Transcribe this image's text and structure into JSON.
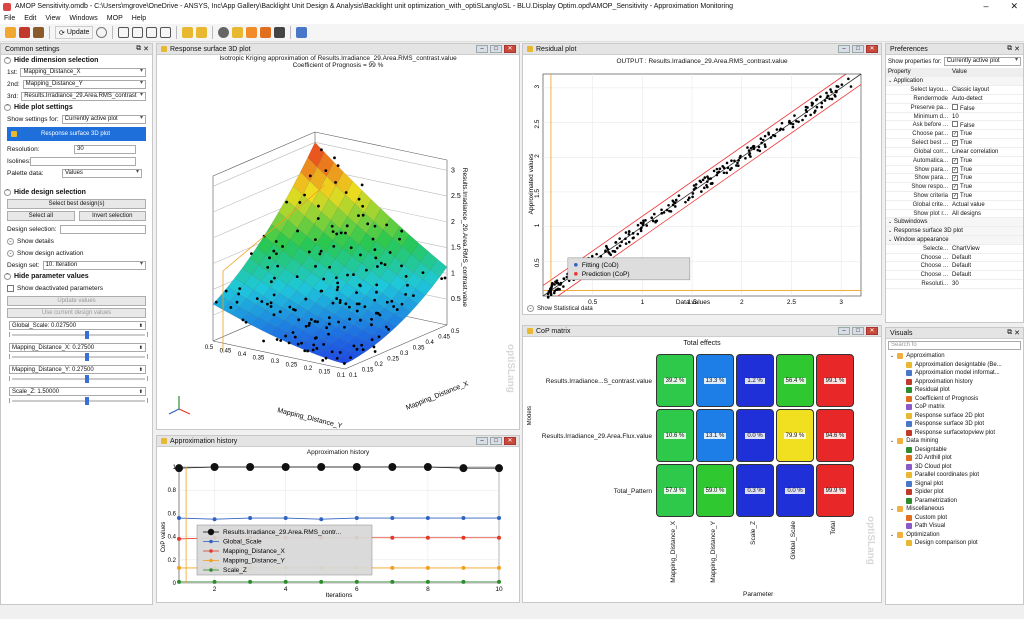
{
  "window": {
    "title": "AMOP Sensitivity.omdb - C:\\Users\\mgrove\\OneDrive - ANSYS, Inc\\App Gallery\\Backlight Unit Design & Analysis\\Backlight unit optimization_with_optiSLang\\oSL - BLU.Display Optim.opd\\AMOP_Sensitivity - Approximation Monitoring",
    "minimize": "–",
    "close": "✕"
  },
  "menu": [
    "File",
    "Edit",
    "View",
    "Windows",
    "MOP",
    "Help"
  ],
  "toolbar": {
    "update_label": "Update"
  },
  "common": {
    "title": "Common settings",
    "hide_dimension": "Hide dimension selection",
    "dims": [
      {
        "label": "1st:",
        "value": "Mapping_Distance_X"
      },
      {
        "label": "2nd:",
        "value": "Mapping_Distance_Y"
      },
      {
        "label": "3rd:",
        "value": "Results.Irradiance_29.Area.RMS_contrast"
      }
    ],
    "hide_plot": "Hide plot settings",
    "show_for_label": "Show settings for:",
    "show_for_value": "Currently active plot",
    "plot_button": "Response surface 3D plot",
    "resolution_label": "Resolution:",
    "resolution_value": "30",
    "isolines_label": "Isolines:",
    "isolines_value": "",
    "palette_label": "Palette data:",
    "palette_value": "Values",
    "hide_design": "Hide design selection",
    "select_best": "Select best design(s)",
    "select_all": "Select all",
    "invert": "Invert selection",
    "design_sel_label": "Design selection:",
    "design_sel_value": "",
    "show_details": "Show details",
    "show_activation": "Show design activation",
    "design_set_label": "Design set:",
    "design_set_value": "10. Iteration",
    "hide_param": "Hide parameter values",
    "show_deactivated": "Show deactivated parameters",
    "update_values": "Update values",
    "use_current": "Use current design values",
    "params": [
      {
        "value": "Global_Scale: 0.027500",
        "level": 0.55
      },
      {
        "value": "Mapping_Distance_X: 0.27500",
        "level": 0.55
      },
      {
        "value": "Mapping_Distance_Y: 0.27500",
        "level": 0.55
      },
      {
        "value": "Scale_Z: 1.50000",
        "level": 0.55
      }
    ]
  },
  "rs3d": {
    "tab": "Response surface 3D plot",
    "title1": "Isotropic Kriging  approximation of Results.Irradiance_29.Area.RMS_contrast.value",
    "title2": "Coefficient of Prognosis = 99 %",
    "zaxis": "Results.Irradiance_29.Area.RMS_contrast.value",
    "xaxis": "Mapping_Distance_X",
    "yaxis": "Mapping_Distance_Y",
    "zticks": [
      "3",
      "2.5",
      "2",
      "1.5",
      "1",
      "0.5"
    ],
    "yticks": [
      "0.1",
      "0.15",
      "0.2",
      "0.25",
      "0.3",
      "0.35",
      "0.4",
      "0.45",
      "0.5"
    ],
    "xticks": [
      "0.1",
      "0.15",
      "0.2",
      "0.25",
      "0.3",
      "0.35",
      "0.4",
      "0.45",
      "0.5"
    ]
  },
  "residual": {
    "tab": "Residual plot",
    "title": "OUTPUT : Results.Irradiance_29.Area.RMS_contrast.value",
    "ylabel": "Approximated values",
    "xlabel": "Data values",
    "xticks": [
      "0.5",
      "1",
      "1.5",
      "2",
      "2.5",
      "3"
    ],
    "yticks": [
      "0.5",
      "1",
      "1.5",
      "2",
      "2.5",
      "3"
    ],
    "legend": [
      "Fitting (CoD)",
      "Prediction (CoP)"
    ],
    "stats": "Show Statistical data"
  },
  "history": {
    "tab": "Approximation history",
    "title": "Approximation history",
    "ylabel": "CoP values",
    "xlabel": "Iterations",
    "xticks": [
      "2",
      "4",
      "6",
      "8",
      "10"
    ],
    "yticks": [
      "1",
      "0.8",
      "0.6",
      "0.4",
      "0.2",
      "0"
    ],
    "legend": [
      "Results.Irradiance_29.Area.RMS_contr...",
      "Global_Scale",
      "Mapping_Distance_X",
      "Mapping_Distance_Y",
      "Scale_Z"
    ],
    "colors": [
      "#111111",
      "#2f63c2",
      "#e03a2a",
      "#f0a020",
      "#2e8b2e"
    ]
  },
  "cop": {
    "tab": "CoP matrix",
    "title": "Total effects",
    "ylabel": "Models",
    "xlabel": "Parameter",
    "rows": [
      "Results.Irradiance...S_contrast.value",
      "Results.Irradiance_29.Area.Flux.value",
      "Total_Pattern"
    ],
    "cols": [
      "Mapping_Distance_X",
      "Mapping_Distance_Y",
      "Scale_Z",
      "Global_Scale",
      "Total"
    ],
    "cells": [
      [
        "39.2 %",
        "13.3 %",
        "1.2 %",
        "56.4 %",
        "99.1 %"
      ],
      [
        "10.6 %",
        "13.1 %",
        "0.0 %",
        "79.9 %",
        "94.6 %"
      ],
      [
        "57.9 %",
        "59.0 %",
        "0.3 %",
        "0.0 %",
        "99.9 %"
      ]
    ],
    "colors": [
      [
        "#2ec84a",
        "#1e7ee8",
        "#2030d8",
        "#30c830",
        "#e82828"
      ],
      [
        "#2ec84a",
        "#1e7ee8",
        "#2030d8",
        "#f0e020",
        "#e82828"
      ],
      [
        "#2ec84a",
        "#30c830",
        "#2030d8",
        "#2030d8",
        "#e82828"
      ]
    ]
  },
  "prefs": {
    "title": "Preferences",
    "show_for_label": "Show properties for:",
    "show_for_value": "Currently active plot",
    "col_property": "Property",
    "col_value": "Value",
    "rows": [
      {
        "p": "Application",
        "v": "",
        "group": true
      },
      {
        "p": "Select layou...",
        "v": "Classic layout"
      },
      {
        "p": "Rendermode",
        "v": "Auto-detect"
      },
      {
        "p": "Preserve pa...",
        "v": "False",
        "cb": true
      },
      {
        "p": "Minimum d...",
        "v": "10"
      },
      {
        "p": "Ask before ...",
        "v": "False",
        "cb": true
      },
      {
        "p": "Choose par...",
        "v": "True",
        "cb": true,
        "checked": true
      },
      {
        "p": "Select best ...",
        "v": "True",
        "cb": true,
        "checked": true
      },
      {
        "p": "Global corr...",
        "v": "Linear correlation"
      },
      {
        "p": "Automatica...",
        "v": "True",
        "cb": true,
        "checked": true
      },
      {
        "p": "Show para...",
        "v": "True",
        "cb": true,
        "checked": true
      },
      {
        "p": "Show para...",
        "v": "True",
        "cb": true,
        "checked": true
      },
      {
        "p": "Show respo...",
        "v": "True",
        "cb": true,
        "checked": true
      },
      {
        "p": "Show criteria",
        "v": "True",
        "cb": true,
        "checked": true
      },
      {
        "p": "Global crite...",
        "v": "Actual value"
      },
      {
        "p": "Show plot r...",
        "v": "All designs"
      },
      {
        "p": "Subwindows",
        "v": "",
        "group": true
      },
      {
        "p": "Response surface 3D plot",
        "v": "",
        "group": true
      },
      {
        "p": "Window appearance",
        "v": "",
        "group": true
      },
      {
        "p": "Selecte...",
        "v": "ChartView"
      },
      {
        "p": "Choose ...",
        "v": "Default"
      },
      {
        "p": "Choose ...",
        "v": "Default"
      },
      {
        "p": "Choose ...",
        "v": "Default"
      },
      {
        "p": "Resoluti...",
        "v": "30"
      }
    ]
  },
  "visuals": {
    "title": "Visuals",
    "search": "Search fo",
    "groups": [
      {
        "name": "Approximation",
        "items": [
          "Approximation designtable (Be...",
          "Approximation model informat...",
          "Approximation history",
          "Residual plot",
          "Coefficient of Prognosis",
          "CoP matrix",
          "Response surface 2D plot",
          "Response surface 3D plot",
          "Response surfacetopview plot"
        ]
      },
      {
        "name": "Data mining",
        "items": [
          "Designtable",
          "2D Anthill plot",
          "3D Cloud plot",
          "Parallel coordinates plot",
          "Signal plot",
          "Spider plot",
          "Parametrization"
        ]
      },
      {
        "name": "Miscellaneous",
        "items": [
          "Custom plot",
          "Path Visual"
        ]
      },
      {
        "name": "Optimization",
        "items": [
          "Design comparison plot"
        ]
      }
    ]
  },
  "watermark": "optiSLang"
}
